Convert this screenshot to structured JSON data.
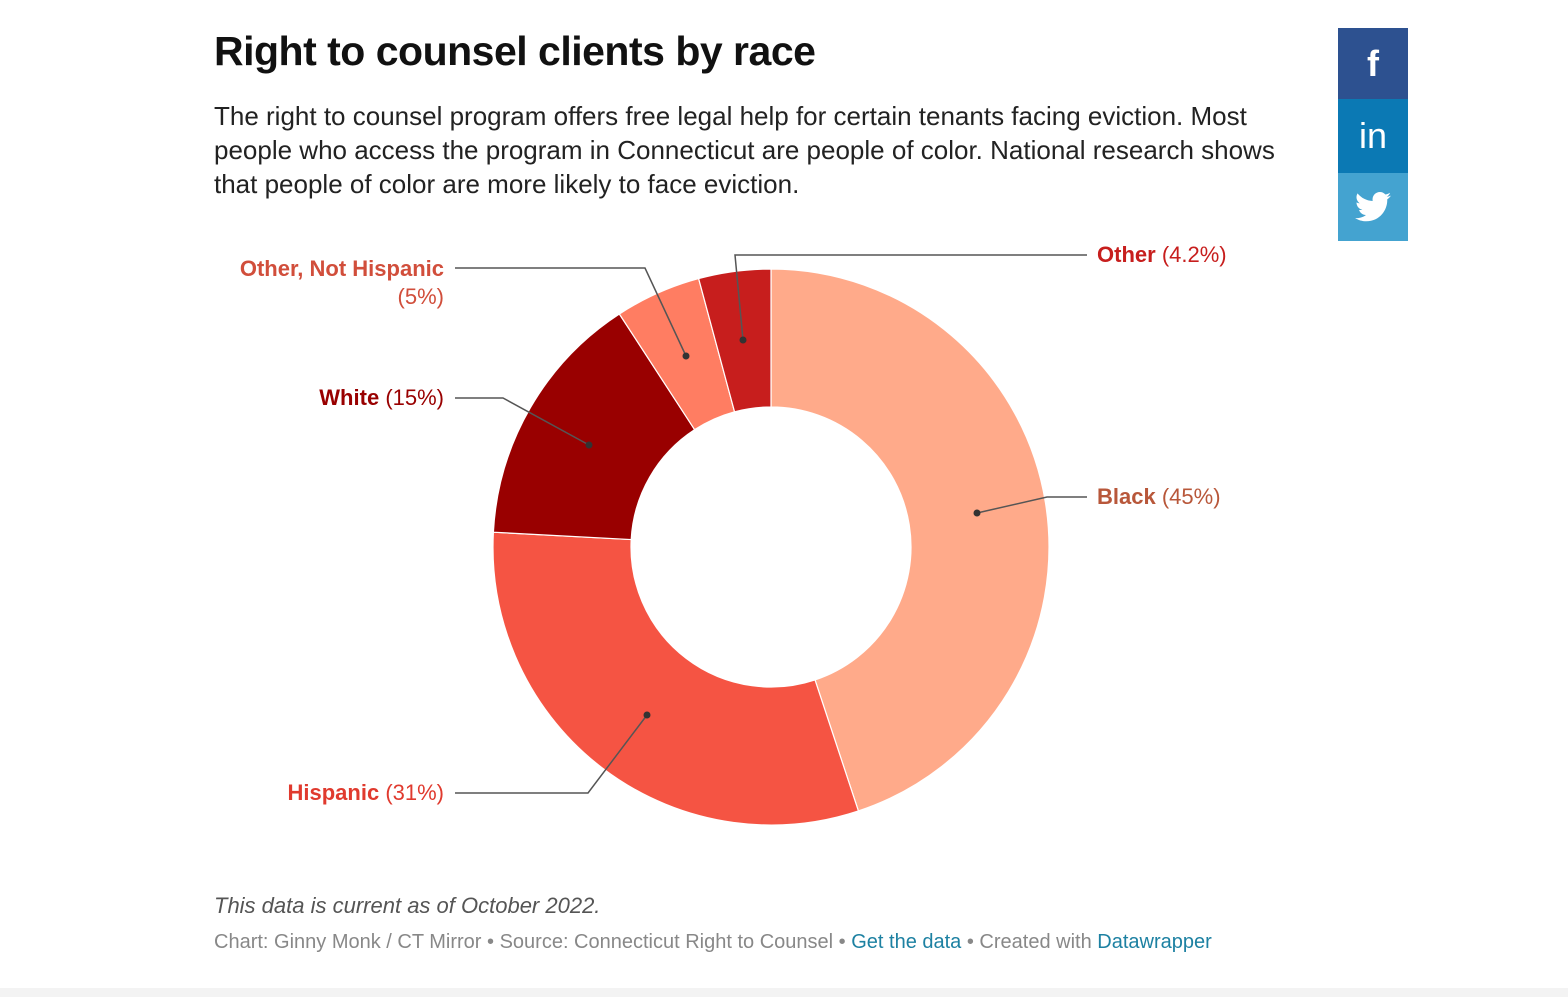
{
  "title": "Right to counsel clients by race",
  "description": "The right to counsel program offers free legal help for certain tenants facing eviction. Most people who access the program in Connecticut are people of color. National research shows that people of color are more likely to face eviction.",
  "social": {
    "facebook": "f",
    "linkedin": "in",
    "twitter": "twitter-bird-icon",
    "colors": {
      "facebook": "#2d5190",
      "linkedin": "#0b79b4",
      "twitter": "#44a3d0"
    }
  },
  "chart_data": {
    "type": "pie",
    "donut": true,
    "categories": [
      "Black",
      "Hispanic",
      "White",
      "Other, Not Hispanic",
      "Other"
    ],
    "values": [
      45,
      31,
      15,
      5,
      4.2
    ],
    "labels": [
      "(45%)",
      "(31%)",
      "(15%)",
      "(5%)",
      "(4.2%)"
    ],
    "colors": [
      "#ffaa8a",
      "#f55443",
      "#990000",
      "#ff7d62",
      "#c71e1d"
    ],
    "label_colors": [
      "#b8573a",
      "#e03a2e",
      "#990000",
      "#d14e3b",
      "#c71e1d"
    ]
  },
  "note": "This data is current as of October 2022.",
  "footer": {
    "credit": "Chart: Ginny Monk / CT Mirror • Source: Connecticut Right to Counsel • ",
    "get_data": "Get the data",
    "sep": " • Created with ",
    "datawrapper": "Datawrapper"
  }
}
